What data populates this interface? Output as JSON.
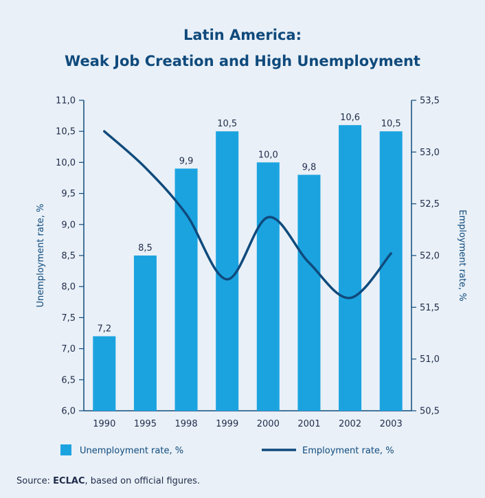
{
  "chart_data": {
    "type": "bar",
    "title": "Latin America:",
    "subtitle": "Weak Job Creation and High Unemployment",
    "categories": [
      "1990",
      "1995",
      "1998",
      "1999",
      "2000",
      "2001",
      "2002",
      "2003"
    ],
    "series": [
      {
        "name": "Unemployment rate, %",
        "type": "bar",
        "axis": "left",
        "color": "#1ba3e0",
        "values": [
          7.2,
          8.5,
          9.9,
          10.5,
          10.0,
          9.8,
          10.6,
          10.5
        ],
        "data_labels": [
          "7,2",
          "8,5",
          "9,9",
          "10,5",
          "10,0",
          "9,8",
          "10,6",
          "10,5"
        ]
      },
      {
        "name": "Employment rate, %",
        "type": "line",
        "axis": "right",
        "color": "#0f4a7c",
        "values": [
          53.2,
          52.85,
          52.4,
          51.77,
          52.37,
          51.93,
          51.59,
          52.02
        ]
      }
    ],
    "ylabel": "Unemployment rate, %",
    "ylabel_right": "Employment rate, %",
    "ylim": [
      6.0,
      11.0
    ],
    "ylim_right": [
      50.5,
      53.5
    ],
    "yticks": [
      "11,0",
      "10,5",
      "10,0",
      "9,5",
      "9,0",
      "8,5",
      "8,0",
      "7,5",
      "7,0",
      "6,5",
      "6,0"
    ],
    "yticks_right": [
      "53,5",
      "53,0",
      "52,5",
      "52,0",
      "51,5",
      "51,0",
      "50,5"
    ],
    "legend_position": "bottom",
    "grid": false
  },
  "source": {
    "prefix": "Source: ",
    "org": "ECLAC",
    "suffix": ", based on official figures."
  }
}
